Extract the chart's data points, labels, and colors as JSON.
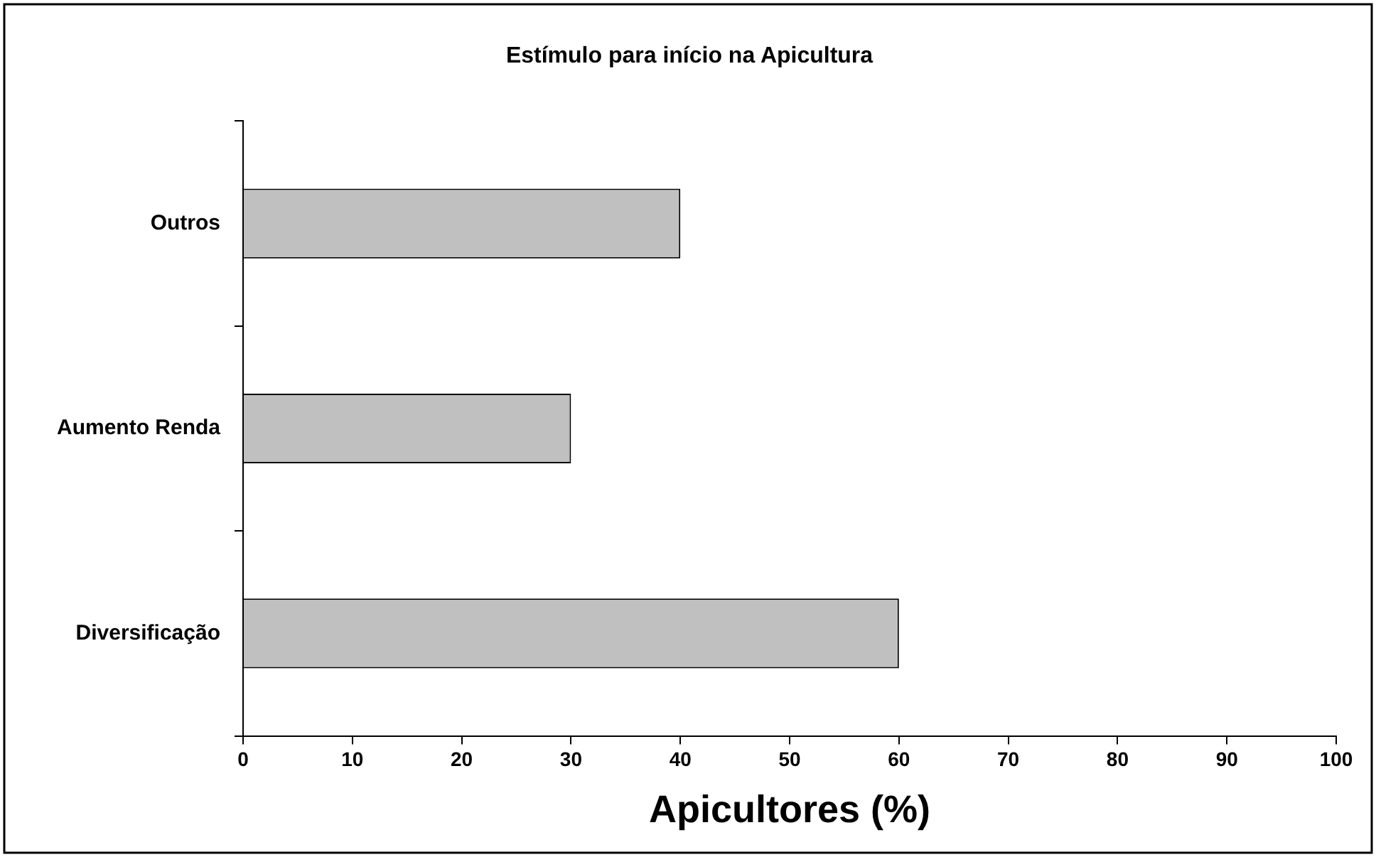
{
  "chart_data": {
    "type": "bar",
    "orientation": "horizontal",
    "title": "Estímulo para início na Apicultura",
    "xlabel": "Apicultores (%)",
    "categories": [
      "Outros",
      "Aumento Renda",
      "Diversificação"
    ],
    "values": [
      40,
      30,
      60
    ],
    "color": "#c0c0c0",
    "xlim": [
      0,
      100
    ],
    "xticks": [
      0,
      10,
      20,
      30,
      40,
      50,
      60,
      70,
      80,
      90,
      100
    ],
    "grid": false,
    "legend": false
  }
}
